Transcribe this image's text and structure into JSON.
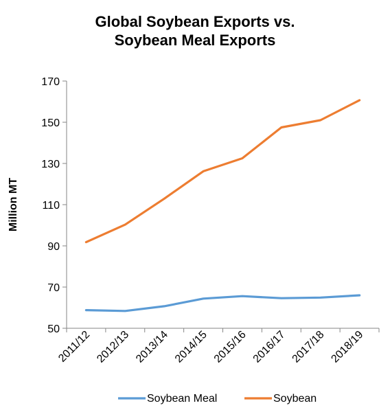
{
  "chart_data": {
    "type": "line",
    "title_line1": "Global Soybean Exports vs.",
    "title_line2": "Soybean Meal Exports",
    "ylabel": "Million MT",
    "xlabel": "",
    "ylim": [
      50,
      170
    ],
    "yticks": [
      50,
      70,
      90,
      110,
      130,
      150,
      170
    ],
    "categories": [
      "2011/12",
      "2012/13",
      "2013/14",
      "2014/15",
      "2015/16",
      "2016/17",
      "2017/18",
      "2018/19"
    ],
    "series": [
      {
        "name": "Soybean Meal",
        "color": "#5B9BD5",
        "values": [
          58.8,
          58.4,
          60.7,
          64.4,
          65.6,
          64.6,
          64.9,
          66.0
        ]
      },
      {
        "name": "Soybean",
        "color": "#ED7D31",
        "values": [
          91.8,
          100.3,
          112.9,
          126.2,
          132.5,
          147.5,
          151.0,
          160.7
        ]
      }
    ],
    "legend_position": "bottom",
    "grid": false
  }
}
